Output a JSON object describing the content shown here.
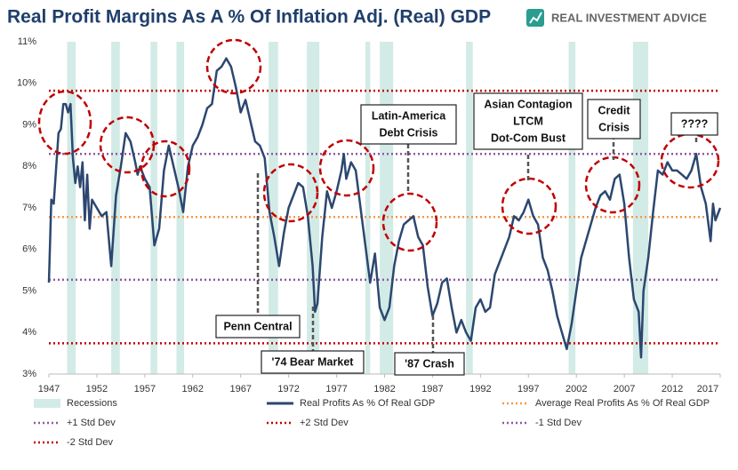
{
  "chart_data": {
    "type": "line",
    "title": "Real Profit Margins As A % Of Inflation Adj. (Real) GDP",
    "logo": "REAL INVESTMENT ADVICE",
    "xlim": [
      1947,
      2017
    ],
    "xticks": [
      1947,
      1952,
      1957,
      1962,
      1967,
      1972,
      1977,
      1982,
      1987,
      1992,
      1997,
      2002,
      2007,
      2012,
      2017
    ],
    "ylim": [
      3,
      11
    ],
    "yticks": [
      {
        "value": 3,
        "label": "3%"
      },
      {
        "value": 4,
        "label": "4%"
      },
      {
        "value": 5,
        "label": "5%"
      },
      {
        "value": 6,
        "label": "6%"
      },
      {
        "value": 7,
        "label": "7%"
      },
      {
        "value": 8,
        "label": "8%"
      },
      {
        "value": 9,
        "label": "9%"
      },
      {
        "value": 10,
        "label": "10%"
      },
      {
        "value": 11,
        "label": "11%"
      }
    ],
    "recessions": {
      "name": "Recessions",
      "color": "#d3ebe6",
      "periods": [
        [
          1948.9,
          1949.8
        ],
        [
          1953.5,
          1954.4
        ],
        [
          1957.6,
          1958.3
        ],
        [
          1960.3,
          1961.1
        ],
        [
          1969.9,
          1970.9
        ],
        [
          1973.9,
          1975.2
        ],
        [
          1980.0,
          1980.5
        ],
        [
          1981.5,
          1982.9
        ],
        [
          1990.5,
          1991.2
        ],
        [
          2001.2,
          2001.9
        ],
        [
          2007.9,
          2009.5
        ]
      ]
    },
    "series": [
      {
        "name": "Real Profits As % Of Real GDP",
        "color": "#2c4770",
        "x": [
          1947,
          1947.25,
          1947.5,
          1948,
          1948.25,
          1948.5,
          1948.75,
          1949,
          1949.25,
          1949.5,
          1949.75,
          1950,
          1950.25,
          1950.5,
          1950.75,
          1951,
          1951.25,
          1951.5,
          1952,
          1952.5,
          1953,
          1953.5,
          1954,
          1954.5,
          1955,
          1955.5,
          1956,
          1956.25,
          1956.5,
          1957,
          1957.5,
          1958,
          1958.5,
          1959,
          1959.5,
          1960,
          1960.5,
          1961,
          1961.5,
          1962,
          1962.5,
          1963,
          1963.5,
          1964,
          1964.5,
          1965,
          1965.5,
          1966,
          1966.5,
          1967,
          1967.5,
          1968,
          1968.5,
          1969,
          1969.5,
          1970,
          1970.5,
          1971,
          1971.5,
          1972,
          1972.5,
          1973,
          1973.5,
          1974,
          1974.5,
          1974.75,
          1975,
          1975.5,
          1976,
          1976.5,
          1977,
          1977.5,
          1977.75,
          1978,
          1978.5,
          1979,
          1979.5,
          1980,
          1980.5,
          1981,
          1981.5,
          1982,
          1982.5,
          1983,
          1983.5,
          1984,
          1984.5,
          1985,
          1985.5,
          1986,
          1986.5,
          1987,
          1987.5,
          1988,
          1988.5,
          1989,
          1989.5,
          1990,
          1990.5,
          1991,
          1991.5,
          1992,
          1992.5,
          1993,
          1993.5,
          1994,
          1994.5,
          1995,
          1995.5,
          1996,
          1996.5,
          1997,
          1997.5,
          1998,
          1998.5,
          1999,
          1999.5,
          2000,
          2000.5,
          2001,
          2001.5,
          2002,
          2002.5,
          2003,
          2003.5,
          2004,
          2004.5,
          2005,
          2005.5,
          2006,
          2006.5,
          2007,
          2007.5,
          2008,
          2008.5,
          2008.75,
          2009,
          2009.5,
          2010,
          2010.5,
          2011,
          2011.5,
          2012,
          2012.5,
          2013,
          2013.5,
          2014,
          2014.5,
          2015,
          2015.5,
          2016,
          2016.25,
          2016.5,
          2017
        ],
        "values": [
          5.2,
          7.2,
          7.1,
          8.8,
          8.9,
          9.5,
          9.5,
          9.3,
          9.5,
          8.2,
          7.6,
          8.0,
          7.5,
          8.1,
          6.7,
          7.8,
          6.5,
          7.2,
          7.0,
          6.8,
          6.9,
          5.6,
          7.3,
          8.0,
          8.8,
          8.6,
          8.1,
          7.8,
          8.0,
          7.7,
          7.5,
          6.1,
          6.5,
          7.9,
          8.5,
          8.0,
          7.5,
          6.9,
          8.0,
          8.5,
          8.7,
          9.0,
          9.4,
          9.5,
          10.3,
          10.4,
          10.6,
          10.4,
          9.9,
          9.3,
          9.6,
          9.1,
          8.6,
          8.5,
          8.2,
          6.9,
          6.3,
          5.6,
          6.4,
          7.0,
          7.3,
          7.6,
          7.5,
          6.8,
          5.6,
          4.5,
          4.7,
          6.3,
          7.4,
          7.0,
          7.4,
          7.9,
          8.3,
          7.7,
          8.1,
          7.9,
          7.0,
          6.1,
          5.2,
          5.9,
          4.6,
          4.3,
          4.6,
          5.6,
          6.2,
          6.6,
          6.7,
          6.8,
          6.3,
          6.1,
          5.1,
          4.4,
          4.7,
          5.2,
          5.3,
          4.6,
          4.0,
          4.3,
          4.0,
          3.8,
          4.6,
          4.8,
          4.5,
          4.6,
          5.4,
          5.7,
          6.0,
          6.3,
          6.8,
          6.7,
          6.9,
          7.2,
          6.8,
          6.6,
          5.8,
          5.5,
          5.0,
          4.4,
          4.0,
          3.6,
          4.2,
          5.0,
          5.8,
          6.2,
          6.6,
          7.0,
          7.3,
          7.4,
          7.2,
          7.7,
          7.8,
          7.1,
          5.8,
          4.8,
          4.5,
          3.4,
          5.0,
          5.8,
          6.9,
          7.9,
          7.8,
          8.1,
          7.9,
          7.9,
          7.8,
          7.7,
          7.9,
          8.3,
          7.5,
          7.1,
          6.2,
          7.1,
          6.7,
          7.0
        ]
      }
    ],
    "reference_lines": [
      {
        "name": "Average Real Profits As % Of Real GDP",
        "value": 6.78,
        "color": "#f39a4c"
      },
      {
        "name": "+1 Std Dev",
        "value": 8.3,
        "color": "#8e5aa0"
      },
      {
        "name": "+2 Std Dev",
        "value": 9.82,
        "color": "#c00000"
      },
      {
        "name": "-1 Std Dev",
        "value": 5.27,
        "color": "#8e5aa0"
      },
      {
        "name": "-2 Std Dev",
        "value": 3.74,
        "color": "#c00000"
      }
    ],
    "annotations": [
      {
        "lines": [
          "Penn Central"
        ]
      },
      {
        "lines": [
          "'74 Bear Market"
        ]
      },
      {
        "lines": [
          "Latin-America",
          "Debt Crisis"
        ]
      },
      {
        "lines": [
          "'87 Crash"
        ]
      },
      {
        "lines": [
          "Asian Contagion",
          "LTCM",
          "Dot-Com Bust"
        ]
      },
      {
        "lines": [
          "Credit",
          "Crisis"
        ]
      },
      {
        "lines": [
          "????"
        ]
      }
    ]
  }
}
